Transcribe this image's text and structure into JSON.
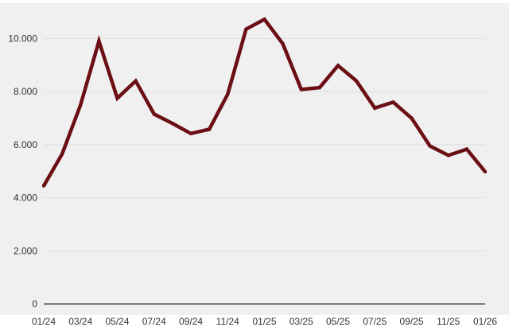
{
  "chart_data": {
    "type": "line",
    "title": "",
    "xlabel": "",
    "ylabel": "",
    "x": [
      "01/24",
      "02/24",
      "03/24",
      "04/24",
      "05/24",
      "06/24",
      "07/24",
      "08/24",
      "09/24",
      "10/24",
      "11/24",
      "12/24",
      "01/25",
      "02/25",
      "03/25",
      "04/25",
      "05/25",
      "06/25",
      "07/25",
      "08/25",
      "09/25",
      "10/25",
      "11/25",
      "12/25",
      "01/26"
    ],
    "x_tick_labels": [
      "01/24",
      "03/24",
      "05/24",
      "07/24",
      "09/24",
      "11/24",
      "01/25",
      "03/25",
      "05/25",
      "07/25",
      "09/25",
      "11/25",
      "01/26"
    ],
    "series": [
      {
        "values": [
          4450,
          5650,
          7500,
          9900,
          7750,
          8400,
          7150,
          6800,
          6420,
          6580,
          7900,
          10350,
          10720,
          9800,
          8080,
          8150,
          8980,
          8400,
          7380,
          7600,
          7000,
          5950,
          5600,
          5830,
          4980
        ]
      }
    ],
    "ylim": [
      0,
      11000
    ],
    "y_ticks": [
      0,
      2000,
      4000,
      6000,
      8000,
      10000
    ],
    "y_tick_labels": [
      "0",
      "2.000",
      "4.000",
      "6.000",
      "8.000",
      "10.000"
    ],
    "grid": true,
    "legend": "none",
    "colors": {
      "line": "#6b0f14",
      "background": "#f0f0f0",
      "grid": "#dedede",
      "axis": "#555555"
    }
  }
}
